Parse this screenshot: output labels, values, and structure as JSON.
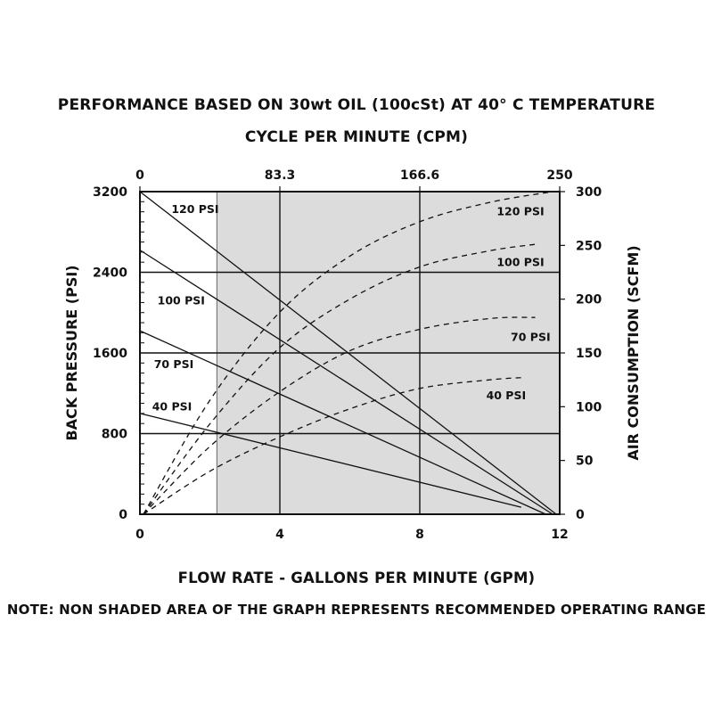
{
  "chart_data": {
    "type": "line",
    "title": "PERFORMANCE BASED ON 30wt OIL (100cSt) AT 40° C TEMPERATURE",
    "top_axis_label": "CYCLE PER MINUTE (CPM)",
    "xlabel": "FLOW RATE - GALLONS PER MINUTE (GPM)",
    "ylabel": "BACK PRESSURE  (PSI)",
    "y2label": "AIR CONSUMPTION  (SCFM)",
    "note": "NOTE: NON SHADED AREA OF THE GRAPH REPRESENTS RECOMMENDED OPERATING RANGE",
    "xlim": [
      0,
      12
    ],
    "ylim": [
      0,
      3200
    ],
    "y2lim": [
      0,
      300
    ],
    "xticks": [
      "0",
      "4",
      "8",
      "12"
    ],
    "xtick_values": [
      0,
      4,
      8,
      12
    ],
    "yticks": [
      "0",
      "800",
      "1600",
      "2400",
      "3200"
    ],
    "ytick_values": [
      0,
      800,
      1600,
      2400,
      3200
    ],
    "y2ticks": [
      "0",
      "50",
      "100",
      "150",
      "200",
      "250",
      "300"
    ],
    "y2tick_values": [
      0,
      50,
      100,
      150,
      200,
      250,
      300
    ],
    "top_ticks": [
      "0",
      "83.3",
      "166.6",
      "250"
    ],
    "top_tick_values_gpm": [
      0,
      4,
      8,
      12
    ],
    "shaded_region": {
      "x_from": 2.2,
      "x_to": 12,
      "color": "#dcdcdc"
    },
    "grid": true,
    "pressure_series": [
      {
        "name": "120 PSI",
        "x": [
          0,
          11.9
        ],
        "y": [
          3200,
          0
        ],
        "label_at": [
          0.9,
          2990
        ]
      },
      {
        "name": "100 PSI",
        "x": [
          0,
          11.8
        ],
        "y": [
          2620,
          0
        ],
        "label_at": [
          0.5,
          2080
        ]
      },
      {
        "name": "70 PSI",
        "x": [
          0,
          11.6
        ],
        "y": [
          1820,
          0
        ],
        "label_at": [
          0.4,
          1450
        ]
      },
      {
        "name": "40 PSI",
        "x": [
          0,
          10.9
        ],
        "y": [
          1000,
          70
        ],
        "label_at": [
          0.35,
          1030
        ]
      }
    ],
    "air_series": [
      {
        "name": "120 PSI",
        "x": [
          0.1,
          2,
          4,
          6,
          8,
          10,
          11.8
        ],
        "y": [
          0,
          106,
          188,
          240,
          272,
          290,
          300
        ],
        "label_at": [
          10.2,
          278
        ]
      },
      {
        "name": "100 PSI",
        "x": [
          0.1,
          2,
          4,
          6,
          8,
          10,
          11.3
        ],
        "y": [
          0,
          84,
          155,
          200,
          230,
          245,
          251
        ],
        "label_at": [
          10.2,
          231
        ]
      },
      {
        "name": "70 PSI",
        "x": [
          0.1,
          2,
          4,
          6,
          8,
          10,
          11.3
        ],
        "y": [
          0,
          63,
          114,
          152,
          172,
          182,
          183
        ],
        "label_at": [
          10.6,
          161
        ]
      },
      {
        "name": "40 PSI",
        "x": [
          0.1,
          2,
          4,
          6,
          8,
          10,
          10.9
        ],
        "y": [
          0,
          40,
          72,
          98,
          117,
          125,
          127
        ],
        "label_at": [
          9.9,
          107
        ]
      }
    ]
  }
}
